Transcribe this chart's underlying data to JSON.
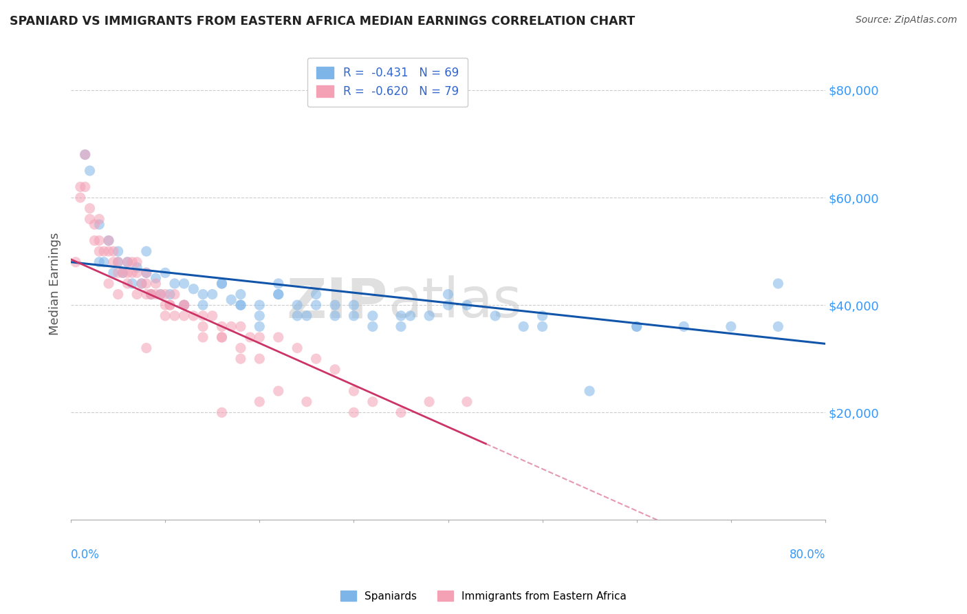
{
  "title": "SPANIARD VS IMMIGRANTS FROM EASTERN AFRICA MEDIAN EARNINGS CORRELATION CHART",
  "source": "Source: ZipAtlas.com",
  "ylabel": "Median Earnings",
  "yticks": [
    0,
    20000,
    40000,
    60000,
    80000
  ],
  "ytick_labels": [
    "",
    "$20,000",
    "$40,000",
    "$60,000",
    "$80,000"
  ],
  "xmin": 0.0,
  "xmax": 80.0,
  "ymin": 0,
  "ymax": 88000,
  "legend_blue_r": "R =  -0.431",
  "legend_blue_n": "N = 69",
  "legend_pink_r": "R =  -0.620",
  "legend_pink_n": "N = 79",
  "blue_color": "#7EB5E8",
  "pink_color": "#F4A0B5",
  "trendline_blue_color": "#1155AA",
  "trendline_pink_color": "#CC3366",
  "blue_intercept": 48000,
  "blue_slope": -190,
  "pink_intercept": 48500,
  "pink_slope": -780,
  "pink_solid_end": 44,
  "pink_dashed_end": 70,
  "spaniards_x": [
    1.5,
    2.0,
    3.0,
    4.0,
    5.0,
    6.0,
    7.0,
    8.0,
    9.0,
    10.0,
    11.0,
    12.0,
    13.0,
    14.0,
    15.0,
    16.0,
    17.0,
    18.0,
    20.0,
    22.0,
    24.0,
    26.0,
    28.0,
    30.0,
    32.0,
    35.0,
    38.0,
    40.0,
    45.0,
    50.0,
    55.0,
    60.0,
    65.0,
    70.0,
    75.0,
    3.5,
    4.5,
    5.5,
    6.5,
    7.5,
    8.5,
    9.5,
    10.5,
    12.0,
    14.0,
    16.0,
    18.0,
    20.0,
    22.0,
    24.0,
    26.0,
    28.0,
    32.0,
    36.0,
    40.0,
    50.0,
    22.0,
    18.0,
    30.0,
    35.0,
    5.0,
    3.0,
    8.0,
    42.0,
    48.0,
    20.0,
    25.0,
    60.0,
    75.0
  ],
  "spaniards_y": [
    68000,
    65000,
    55000,
    52000,
    50000,
    48000,
    47000,
    46000,
    45000,
    46000,
    44000,
    44000,
    43000,
    42000,
    42000,
    44000,
    41000,
    42000,
    40000,
    42000,
    40000,
    42000,
    40000,
    40000,
    38000,
    38000,
    38000,
    40000,
    38000,
    38000,
    24000,
    36000,
    36000,
    36000,
    44000,
    48000,
    46000,
    46000,
    44000,
    44000,
    42000,
    42000,
    42000,
    40000,
    40000,
    44000,
    40000,
    38000,
    42000,
    38000,
    40000,
    38000,
    36000,
    38000,
    42000,
    36000,
    44000,
    40000,
    38000,
    36000,
    48000,
    48000,
    50000,
    40000,
    36000,
    36000,
    38000,
    36000,
    36000
  ],
  "immigrants_x": [
    0.5,
    1.0,
    1.5,
    2.0,
    2.5,
    3.0,
    3.5,
    4.0,
    4.5,
    5.0,
    5.5,
    6.0,
    6.5,
    7.0,
    7.5,
    8.0,
    8.5,
    9.0,
    9.5,
    10.0,
    10.5,
    11.0,
    12.0,
    13.0,
    14.0,
    15.0,
    16.0,
    17.0,
    18.0,
    19.0,
    20.0,
    22.0,
    24.0,
    26.0,
    28.0,
    30.0,
    32.0,
    35.0,
    38.0,
    42.0,
    1.0,
    2.0,
    3.0,
    4.0,
    5.0,
    6.0,
    7.0,
    8.0,
    9.0,
    10.0,
    11.0,
    12.0,
    14.0,
    16.0,
    18.0,
    20.0,
    4.0,
    5.0,
    6.0,
    7.0,
    8.0,
    10.0,
    14.0,
    3.0,
    2.5,
    1.5,
    4.5,
    6.5,
    8.5,
    10.5,
    12.0,
    16.0,
    18.0,
    25.0,
    30.0,
    20.0,
    22.0,
    8.0,
    16.0
  ],
  "immigrants_y": [
    48000,
    60000,
    62000,
    56000,
    52000,
    50000,
    50000,
    50000,
    48000,
    46000,
    46000,
    46000,
    48000,
    46000,
    44000,
    44000,
    42000,
    42000,
    42000,
    40000,
    40000,
    38000,
    40000,
    38000,
    38000,
    38000,
    36000,
    36000,
    36000,
    34000,
    34000,
    34000,
    32000,
    30000,
    28000,
    24000,
    22000,
    20000,
    22000,
    22000,
    62000,
    58000,
    52000,
    52000,
    48000,
    48000,
    48000,
    46000,
    44000,
    42000,
    42000,
    40000,
    36000,
    34000,
    32000,
    30000,
    44000,
    42000,
    44000,
    42000,
    42000,
    38000,
    34000,
    56000,
    55000,
    68000,
    50000,
    46000,
    42000,
    40000,
    38000,
    34000,
    30000,
    22000,
    20000,
    22000,
    24000,
    32000,
    20000
  ]
}
